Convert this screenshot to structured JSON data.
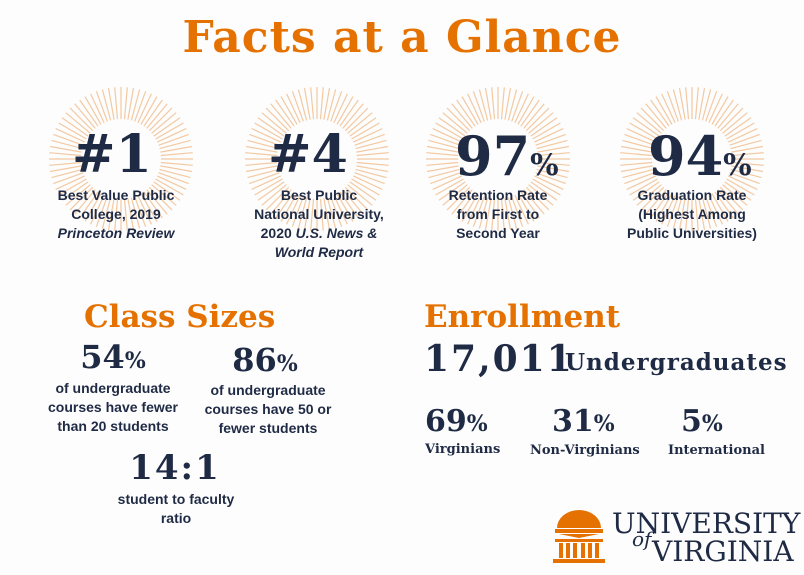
{
  "title": "Facts at a Glance",
  "rankings": [
    {
      "value": "#1",
      "caption_l1": "Best Value Public",
      "caption_l2": "College, 2019",
      "caption_l3": "Princeton Review"
    },
    {
      "value": "#4",
      "caption_l1": "Best Public",
      "caption_l2": "National University,",
      "caption_l3a": "2020 ",
      "caption_l3b": "U.S. News &",
      "caption_l4": "World Report"
    },
    {
      "value": "97",
      "pct": "%",
      "caption_l1": "Retention Rate",
      "caption_l2": "from First to",
      "caption_l3": "Second Year"
    },
    {
      "value": "94",
      "pct": "%",
      "caption_l1": "Graduation Rate",
      "caption_l2": "(Highest Among",
      "caption_l3": "Public Universities)"
    }
  ],
  "class_sizes": {
    "heading": "Class Sizes",
    "stat1": {
      "value": "54",
      "pct": "%",
      "l1": "of undergraduate",
      "l2": "courses have fewer",
      "l3": "than 20 students"
    },
    "stat2": {
      "value": "86",
      "pct": "%",
      "l1": "of undergraduate",
      "l2": "courses have 50 or",
      "l3": "fewer students"
    },
    "ratio": {
      "value": "14:1",
      "l1": "student to faculty",
      "l2": "ratio"
    }
  },
  "enrollment": {
    "heading": "Enrollment",
    "total": "17,011",
    "total_label": "Undergraduates",
    "stats": [
      {
        "value": "69",
        "pct": "%",
        "label": "Virginians"
      },
      {
        "value": "31",
        "pct": "%",
        "label": "Non-Virginians"
      },
      {
        "value": "5",
        "pct": "%",
        "label": "International"
      }
    ]
  },
  "logo": {
    "line1": "UNIVERSITY",
    "of": "of",
    "line2": "VIRGINIA"
  },
  "colors": {
    "accent": "#e57200",
    "navy": "#1f2a44",
    "ray": "#f2c9a2"
  }
}
